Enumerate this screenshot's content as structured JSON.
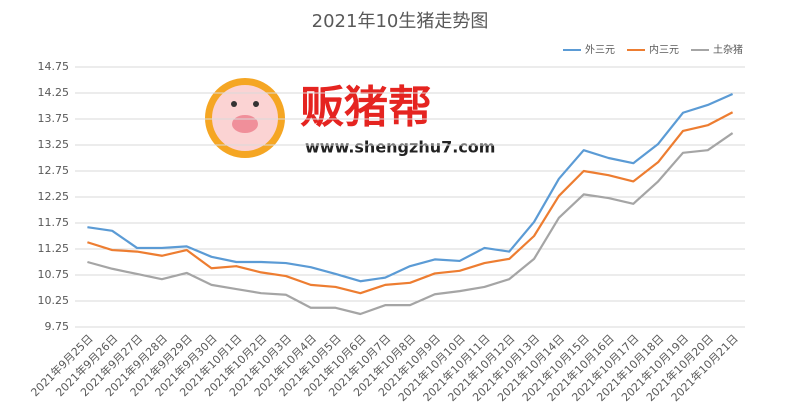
{
  "chart_data": {
    "type": "line",
    "title": "2021年10生猪走势图",
    "annotations": [
      "贩猪帮",
      "www.shengzhu7.com"
    ],
    "categories": [
      "2021年9月25日",
      "2021年9月26日",
      "2021年9月27日",
      "2021年9月28日",
      "2021年9月29日",
      "2021年9月30日",
      "2021年10月1日",
      "2021年10月2日",
      "2021年10月3日",
      "2021年10月4日",
      "2021年10月5日",
      "2021年10月6日",
      "2021年10月7日",
      "2021年10月8日",
      "2021年10月9日",
      "2021年10月10日",
      "2021年10月11日",
      "2021年10月12日",
      "2021年10月13日",
      "2021年10月14日",
      "2021年10月15日",
      "2021年10月16日",
      "2021年10月17日",
      "2021年10月18日",
      "2021年10月19日",
      "2021年10月20日",
      "2021年10月21日"
    ],
    "series": [
      {
        "name": "外三元",
        "color": "#5b9bd5",
        "values": [
          11.67,
          11.6,
          11.27,
          11.27,
          11.3,
          11.1,
          11.0,
          11.0,
          10.98,
          10.9,
          10.77,
          10.63,
          10.7,
          10.92,
          11.05,
          11.02,
          11.27,
          11.2,
          11.77,
          12.6,
          13.15,
          13.0,
          12.9,
          13.27,
          13.87,
          14.02,
          14.23
        ]
      },
      {
        "name": "内三元",
        "color": "#ed7d31",
        "values": [
          11.38,
          11.23,
          11.2,
          11.12,
          11.23,
          10.88,
          10.92,
          10.8,
          10.73,
          10.56,
          10.52,
          10.4,
          10.56,
          10.6,
          10.78,
          10.83,
          10.98,
          11.06,
          11.5,
          12.27,
          12.75,
          12.67,
          12.55,
          12.92,
          13.52,
          13.63,
          13.88
        ]
      },
      {
        "name": "土杂猪",
        "color": "#a5a5a5",
        "values": [
          11.0,
          10.87,
          10.77,
          10.67,
          10.79,
          10.56,
          10.48,
          10.4,
          10.37,
          10.12,
          10.12,
          10.0,
          10.17,
          10.17,
          10.38,
          10.44,
          10.52,
          10.67,
          11.06,
          11.85,
          12.3,
          12.23,
          12.12,
          12.55,
          13.1,
          13.15,
          13.48
        ]
      }
    ],
    "ylim": [
      9.75,
      14.75
    ],
    "yticks": [
      9.75,
      10.25,
      10.75,
      11.25,
      11.75,
      12.25,
      12.75,
      13.25,
      13.75,
      14.25,
      14.75
    ],
    "grid": true,
    "legend": "top-right"
  }
}
